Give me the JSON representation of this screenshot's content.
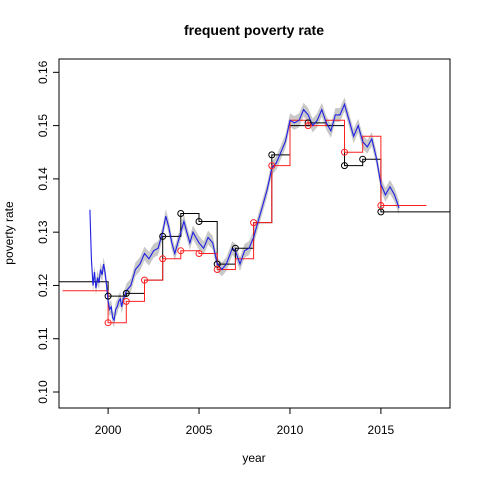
{
  "chart_data": {
    "type": "line",
    "title": "frequent poverty rate",
    "xlabel": "year",
    "ylabel": "poverty rate",
    "xlim": [
      1997.3,
      2018.8
    ],
    "ylim": [
      0.097,
      0.1625
    ],
    "x_ticks": [
      2000,
      2005,
      2010,
      2015
    ],
    "x_tick_labels": [
      "2000",
      "2005",
      "2010",
      "2015"
    ],
    "y_ticks": [
      0.1,
      0.11,
      0.12,
      0.13,
      0.14,
      0.15,
      0.16
    ],
    "y_tick_labels": [
      "0.10",
      "0.11",
      "0.12",
      "0.13",
      "0.14",
      "0.15",
      "0.16"
    ],
    "colors": {
      "black": "#000000",
      "red": "#ff2020",
      "blue": "#1f1fe6",
      "band": "#c8c8c8"
    },
    "series": [
      {
        "color": "black",
        "kind": "step",
        "points": [
          [
            1997.3,
            0.1207
          ],
          [
            2000,
            0.1207
          ],
          [
            2000,
            0.118
          ],
          [
            2001,
            0.118
          ],
          [
            2001,
            0.1185
          ],
          [
            2002,
            0.1185
          ],
          [
            2002,
            0.121
          ],
          [
            2003,
            0.121
          ],
          [
            2003,
            0.1292
          ],
          [
            2004,
            0.1292
          ],
          [
            2004,
            0.1335
          ],
          [
            2005,
            0.1335
          ],
          [
            2005,
            0.132
          ],
          [
            2006,
            0.132
          ],
          [
            2006,
            0.124
          ],
          [
            2007,
            0.124
          ],
          [
            2007,
            0.127
          ],
          [
            2008,
            0.127
          ],
          [
            2008,
            0.1318
          ],
          [
            2009,
            0.1318
          ],
          [
            2009,
            0.1445
          ],
          [
            2010,
            0.1445
          ],
          [
            2010,
            0.15
          ],
          [
            2011,
            0.15
          ],
          [
            2011,
            0.1505
          ],
          [
            2012,
            0.1505
          ],
          [
            2012,
            0.15
          ],
          [
            2013,
            0.15
          ],
          [
            2013,
            0.1425
          ],
          [
            2014,
            0.1425
          ],
          [
            2014,
            0.1437
          ],
          [
            2015,
            0.1437
          ],
          [
            2015,
            0.1338
          ],
          [
            2018.8,
            0.1338
          ]
        ],
        "markers": [
          [
            2000,
            0.118
          ],
          [
            2001,
            0.1185
          ],
          [
            2003,
            0.1292
          ],
          [
            2004,
            0.1335
          ],
          [
            2005,
            0.132
          ],
          [
            2006,
            0.124
          ],
          [
            2007,
            0.127
          ],
          [
            2009,
            0.1445
          ],
          [
            2011,
            0.1505
          ],
          [
            2013,
            0.1425
          ],
          [
            2014,
            0.1437
          ],
          [
            2015,
            0.1338
          ]
        ]
      },
      {
        "color": "red",
        "kind": "step",
        "points": [
          [
            1997.5,
            0.119
          ],
          [
            2000,
            0.119
          ],
          [
            2000,
            0.113
          ],
          [
            2001,
            0.113
          ],
          [
            2001,
            0.117
          ],
          [
            2002,
            0.117
          ],
          [
            2002,
            0.121
          ],
          [
            2003,
            0.121
          ],
          [
            2003,
            0.125
          ],
          [
            2004,
            0.125
          ],
          [
            2004,
            0.1265
          ],
          [
            2005,
            0.1265
          ],
          [
            2005,
            0.126
          ],
          [
            2006,
            0.126
          ],
          [
            2006,
            0.123
          ],
          [
            2007,
            0.123
          ],
          [
            2007,
            0.125
          ],
          [
            2008,
            0.125
          ],
          [
            2008,
            0.1318
          ],
          [
            2009,
            0.1318
          ],
          [
            2009,
            0.1425
          ],
          [
            2010,
            0.1425
          ],
          [
            2010,
            0.151
          ],
          [
            2011,
            0.151
          ],
          [
            2011,
            0.15
          ],
          [
            2012,
            0.15
          ],
          [
            2012,
            0.151
          ],
          [
            2013,
            0.151
          ],
          [
            2013,
            0.145
          ],
          [
            2014,
            0.145
          ],
          [
            2014,
            0.148
          ],
          [
            2015,
            0.148
          ],
          [
            2015,
            0.135
          ],
          [
            2017.5,
            0.135
          ]
        ],
        "markers": [
          [
            2000,
            0.113
          ],
          [
            2001,
            0.117
          ],
          [
            2002,
            0.121
          ],
          [
            2003,
            0.125
          ],
          [
            2004,
            0.1265
          ],
          [
            2005,
            0.126
          ],
          [
            2006,
            0.123
          ],
          [
            2008,
            0.1318
          ],
          [
            2009,
            0.1425
          ],
          [
            2011,
            0.15
          ],
          [
            2013,
            0.145
          ],
          [
            2015,
            0.135
          ]
        ]
      },
      {
        "color": "blue",
        "kind": "line",
        "band": 0.0013,
        "points": [
          [
            1999.0,
            0.1342
          ],
          [
            1999.08,
            0.125
          ],
          [
            1999.17,
            0.12
          ],
          [
            1999.25,
            0.1225
          ],
          [
            1999.33,
            0.1195
          ],
          [
            1999.42,
            0.1215
          ],
          [
            1999.5,
            0.1205
          ],
          [
            1999.58,
            0.123
          ],
          [
            1999.67,
            0.122
          ],
          [
            1999.75,
            0.124
          ],
          [
            1999.83,
            0.1225
          ],
          [
            1999.92,
            0.12
          ],
          [
            2000.0,
            0.117
          ],
          [
            2000.08,
            0.1155
          ],
          [
            2000.17,
            0.116
          ],
          [
            2000.25,
            0.114
          ],
          [
            2000.33,
            0.1135
          ],
          [
            2000.42,
            0.1155
          ],
          [
            2000.5,
            0.116
          ],
          [
            2000.58,
            0.117
          ],
          [
            2000.67,
            0.1175
          ],
          [
            2000.75,
            0.116
          ],
          [
            2000.83,
            0.1175
          ],
          [
            2000.92,
            0.118
          ],
          [
            2001.0,
            0.119
          ],
          [
            2001.25,
            0.12
          ],
          [
            2001.5,
            0.123
          ],
          [
            2001.75,
            0.124
          ],
          [
            2002.0,
            0.126
          ],
          [
            2002.25,
            0.125
          ],
          [
            2002.5,
            0.1265
          ],
          [
            2002.75,
            0.127
          ],
          [
            2003.0,
            0.13
          ],
          [
            2003.17,
            0.133
          ],
          [
            2003.33,
            0.131
          ],
          [
            2003.5,
            0.128
          ],
          [
            2003.67,
            0.126
          ],
          [
            2003.83,
            0.128
          ],
          [
            2004.0,
            0.13
          ],
          [
            2004.17,
            0.132
          ],
          [
            2004.33,
            0.13
          ],
          [
            2004.5,
            0.128
          ],
          [
            2004.67,
            0.13
          ],
          [
            2004.83,
            0.129
          ],
          [
            2005.0,
            0.128
          ],
          [
            2005.25,
            0.127
          ],
          [
            2005.5,
            0.129
          ],
          [
            2005.75,
            0.128
          ],
          [
            2006.0,
            0.124
          ],
          [
            2006.25,
            0.123
          ],
          [
            2006.5,
            0.124
          ],
          [
            2006.67,
            0.1255
          ],
          [
            2006.83,
            0.127
          ],
          [
            2007.0,
            0.1265
          ],
          [
            2007.25,
            0.124
          ],
          [
            2007.5,
            0.1265
          ],
          [
            2007.75,
            0.127
          ],
          [
            2008.0,
            0.129
          ],
          [
            2008.25,
            0.132
          ],
          [
            2008.5,
            0.135
          ],
          [
            2008.75,
            0.138
          ],
          [
            2009.0,
            0.142
          ],
          [
            2009.25,
            0.143
          ],
          [
            2009.5,
            0.145
          ],
          [
            2009.75,
            0.147
          ],
          [
            2010.0,
            0.151
          ],
          [
            2010.25,
            0.1505
          ],
          [
            2010.5,
            0.151
          ],
          [
            2010.75,
            0.153
          ],
          [
            2011.0,
            0.152
          ],
          [
            2011.25,
            0.15
          ],
          [
            2011.5,
            0.151
          ],
          [
            2011.75,
            0.153
          ],
          [
            2012.0,
            0.1505
          ],
          [
            2012.25,
            0.149
          ],
          [
            2012.5,
            0.152
          ],
          [
            2012.75,
            0.152
          ],
          [
            2013.0,
            0.154
          ],
          [
            2013.25,
            0.151
          ],
          [
            2013.5,
            0.148
          ],
          [
            2013.75,
            0.15
          ],
          [
            2014.0,
            0.147
          ],
          [
            2014.25,
            0.146
          ],
          [
            2014.5,
            0.1475
          ],
          [
            2014.75,
            0.144
          ],
          [
            2015.0,
            0.139
          ],
          [
            2015.25,
            0.137
          ],
          [
            2015.5,
            0.1385
          ],
          [
            2015.75,
            0.137
          ],
          [
            2016.0,
            0.1345
          ]
        ]
      }
    ]
  }
}
